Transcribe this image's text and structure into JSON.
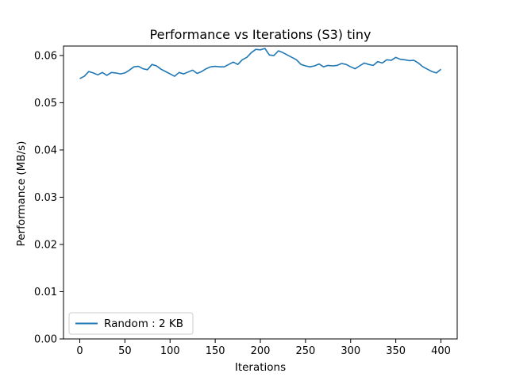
{
  "chart_data": {
    "type": "line",
    "title": "Performance vs Iterations (S3) tiny",
    "xlabel": "Iterations",
    "ylabel": "Performance (MB/s)",
    "xlim": [
      -18,
      418
    ],
    "ylim": [
      0.0,
      0.062
    ],
    "xticks": [
      0,
      50,
      100,
      150,
      200,
      250,
      300,
      350,
      400
    ],
    "xtick_labels": [
      "0",
      "50",
      "100",
      "150",
      "200",
      "250",
      "300",
      "350",
      "400"
    ],
    "yticks": [
      0.0,
      0.01,
      0.02,
      0.03,
      0.04,
      0.05,
      0.06
    ],
    "ytick_labels": [
      "0.00",
      "0.01",
      "0.02",
      "0.03",
      "0.04",
      "0.05",
      "0.06"
    ],
    "grid": false,
    "legend_position": "lower-left",
    "series": [
      {
        "name": "Random : 2 KB",
        "color": "#1f77b4",
        "x": [
          0,
          5,
          10,
          15,
          20,
          25,
          30,
          35,
          40,
          45,
          50,
          55,
          60,
          65,
          70,
          75,
          80,
          85,
          90,
          95,
          100,
          105,
          110,
          115,
          120,
          125,
          130,
          135,
          140,
          145,
          150,
          155,
          160,
          165,
          170,
          175,
          180,
          185,
          190,
          195,
          200,
          205,
          210,
          215,
          220,
          225,
          230,
          235,
          240,
          245,
          250,
          255,
          260,
          265,
          270,
          275,
          280,
          285,
          290,
          295,
          300,
          305,
          310,
          315,
          320,
          325,
          330,
          335,
          340,
          345,
          350,
          355,
          360,
          365,
          370,
          375,
          380,
          385,
          390,
          395,
          400
        ],
        "y": [
          0.0551,
          0.0556,
          0.0566,
          0.0563,
          0.0559,
          0.0564,
          0.0558,
          0.0564,
          0.0563,
          0.0561,
          0.0563,
          0.0569,
          0.0576,
          0.0577,
          0.0572,
          0.057,
          0.0581,
          0.0578,
          0.0571,
          0.0566,
          0.0561,
          0.0556,
          0.0564,
          0.0561,
          0.0565,
          0.0569,
          0.0562,
          0.0566,
          0.0572,
          0.0576,
          0.0577,
          0.0576,
          0.0576,
          0.0581,
          0.0586,
          0.0581,
          0.0591,
          0.0596,
          0.0606,
          0.0613,
          0.0612,
          0.0615,
          0.0601,
          0.06,
          0.061,
          0.0606,
          0.0601,
          0.0596,
          0.0591,
          0.0581,
          0.0578,
          0.0576,
          0.0578,
          0.0582,
          0.0576,
          0.0579,
          0.0578,
          0.0579,
          0.0583,
          0.0581,
          0.0576,
          0.0572,
          0.0578,
          0.0584,
          0.0581,
          0.0579,
          0.0587,
          0.0584,
          0.0591,
          0.059,
          0.0596,
          0.0592,
          0.0591,
          0.0589,
          0.059,
          0.0584,
          0.0576,
          0.0571,
          0.0566,
          0.0563,
          0.0571
        ]
      }
    ]
  }
}
